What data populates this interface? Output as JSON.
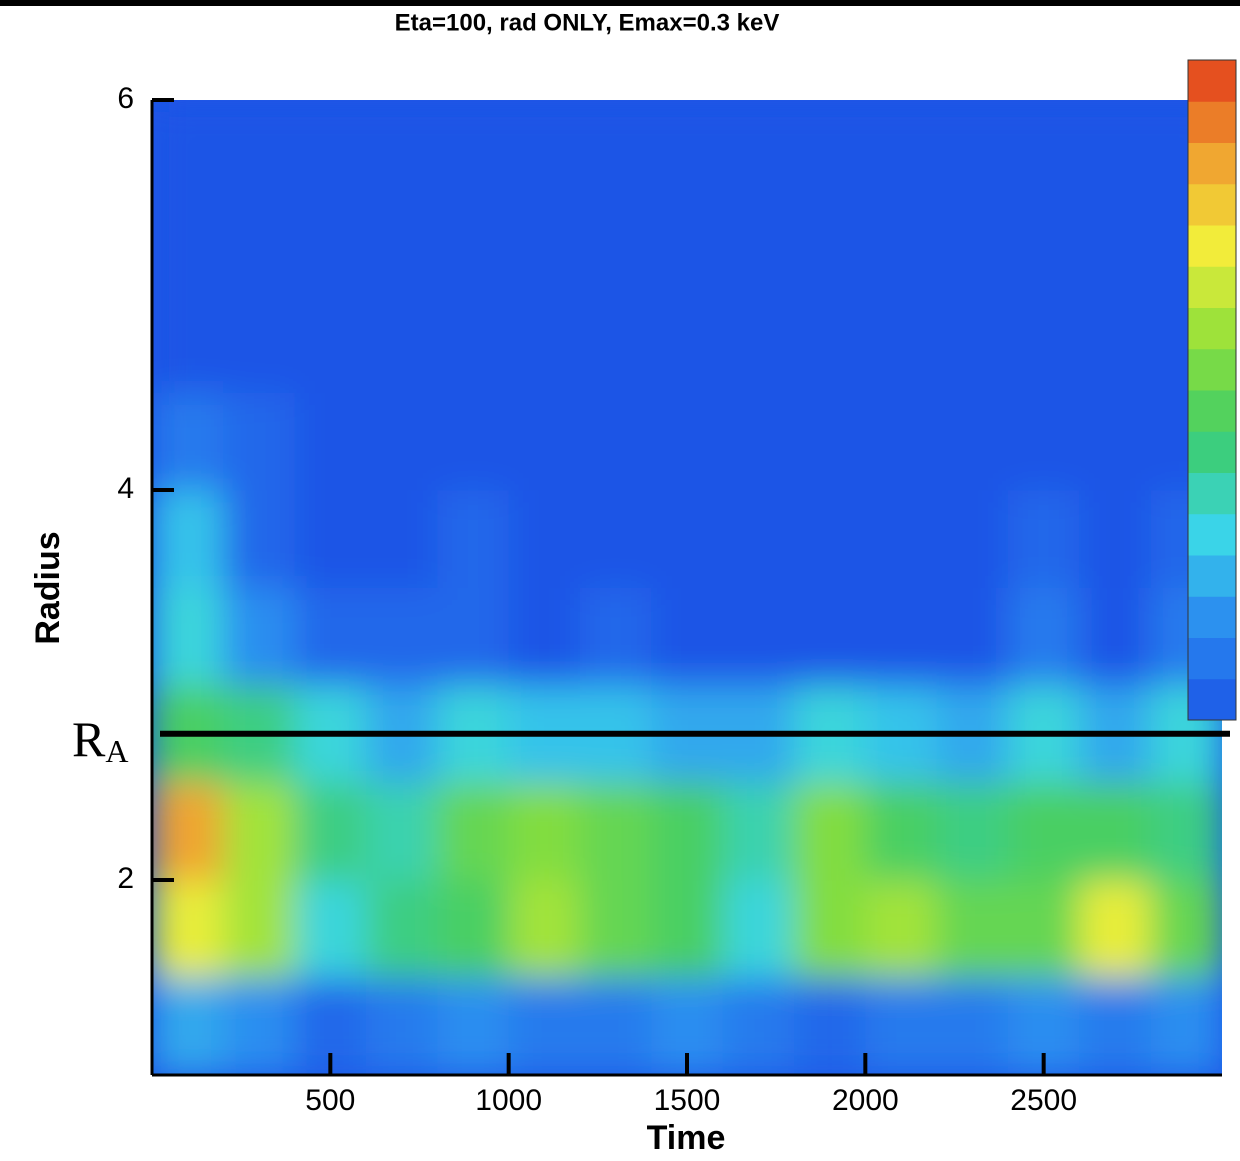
{
  "chart_data": {
    "type": "heatmap",
    "title": "Eta=100, rad ONLY, Emax=0.3 keV",
    "x_label": "Time",
    "y_label": "Radius",
    "xlim": [
      0,
      3000
    ],
    "ylim": [
      1,
      6
    ],
    "xticks": [
      500,
      1000,
      1500,
      2000,
      2500
    ],
    "yticks": [
      2,
      4,
      6
    ],
    "x_bins": [
      0,
      200,
      400,
      600,
      800,
      1000,
      1200,
      1400,
      1600,
      1800,
      2000,
      2200,
      2400,
      2600,
      2800,
      3000
    ],
    "y_bins": [
      1,
      1.5,
      2,
      2.5,
      3,
      3.5,
      4,
      4.5,
      5,
      5.5,
      6
    ],
    "colormap": [
      "#1c55e6",
      "#2a8af0",
      "#3ad6e8",
      "#3ccc6a",
      "#8ee03a",
      "#f2ee3a",
      "#f0a030",
      "#e23a1a"
    ],
    "z": [
      [
        0.2,
        0.15,
        0.05,
        0.1,
        0.15,
        0.1,
        0.1,
        0.15,
        0.1,
        0.05,
        0.1,
        0.1,
        0.15,
        0.1,
        0.15
      ],
      [
        0.7,
        0.6,
        0.3,
        0.4,
        0.45,
        0.6,
        0.5,
        0.45,
        0.3,
        0.55,
        0.6,
        0.5,
        0.5,
        0.7,
        0.5
      ],
      [
        0.85,
        0.6,
        0.4,
        0.35,
        0.5,
        0.55,
        0.5,
        0.45,
        0.35,
        0.55,
        0.45,
        0.4,
        0.45,
        0.45,
        0.4
      ],
      [
        0.45,
        0.4,
        0.3,
        0.2,
        0.3,
        0.25,
        0.25,
        0.2,
        0.2,
        0.3,
        0.25,
        0.2,
        0.3,
        0.2,
        0.3
      ],
      [
        0.3,
        0.15,
        0.05,
        0.05,
        0.05,
        0,
        0.05,
        0,
        0,
        0,
        0,
        0,
        0.1,
        0,
        0.1
      ],
      [
        0.25,
        0.05,
        0,
        0,
        0.05,
        0,
        0,
        0,
        0,
        0,
        0,
        0,
        0.05,
        0,
        0.05
      ],
      [
        0.1,
        0.05,
        0,
        0,
        0,
        0,
        0,
        0,
        0,
        0,
        0,
        0,
        0,
        0,
        0
      ],
      [
        0,
        0,
        0,
        0,
        0,
        0,
        0,
        0,
        0,
        0,
        0,
        0,
        0,
        0,
        0
      ],
      [
        0,
        0,
        0,
        0,
        0,
        0,
        0,
        0,
        0,
        0,
        0,
        0,
        0,
        0,
        0
      ],
      [
        0,
        0,
        0,
        0,
        0,
        0,
        0,
        0,
        0,
        0,
        0,
        0,
        0,
        0,
        0
      ]
    ],
    "annotations": [
      {
        "text": "R",
        "subscript": "A",
        "y": 2.75
      }
    ]
  }
}
